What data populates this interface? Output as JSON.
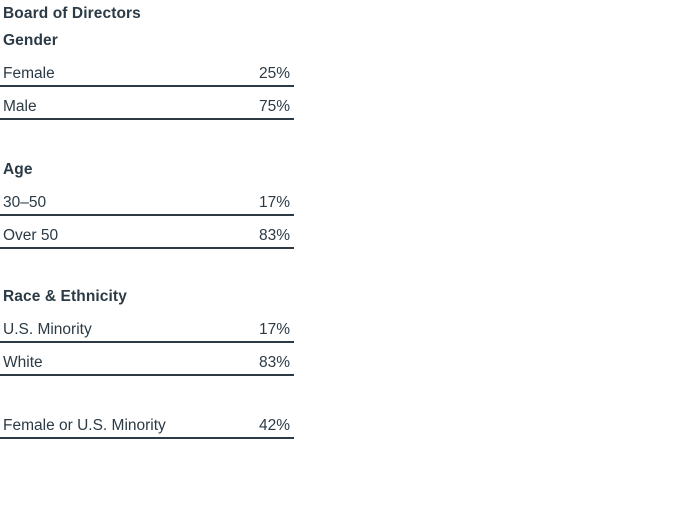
{
  "page": {
    "background_color": "#ffffff",
    "text_color": "#2b3a45",
    "rule_color": "#2b3a45"
  },
  "table": {
    "title": "Board of Directors",
    "sections": [
      {
        "heading": "Gender",
        "rows": [
          {
            "label": "Female",
            "value": "25%"
          },
          {
            "label": "Male",
            "value": "75%"
          }
        ]
      },
      {
        "heading": "Age",
        "rows": [
          {
            "label": "30–50",
            "value": "17%"
          },
          {
            "label": "Over 50",
            "value": "83%"
          }
        ]
      },
      {
        "heading": "Race & Ethnicity",
        "rows": [
          {
            "label": "U.S. Minority",
            "value": "17%"
          },
          {
            "label": "White",
            "value": "83%"
          }
        ]
      },
      {
        "heading": null,
        "rows": [
          {
            "label": "Female or U.S. Minority",
            "value": "42%"
          }
        ]
      }
    ]
  }
}
